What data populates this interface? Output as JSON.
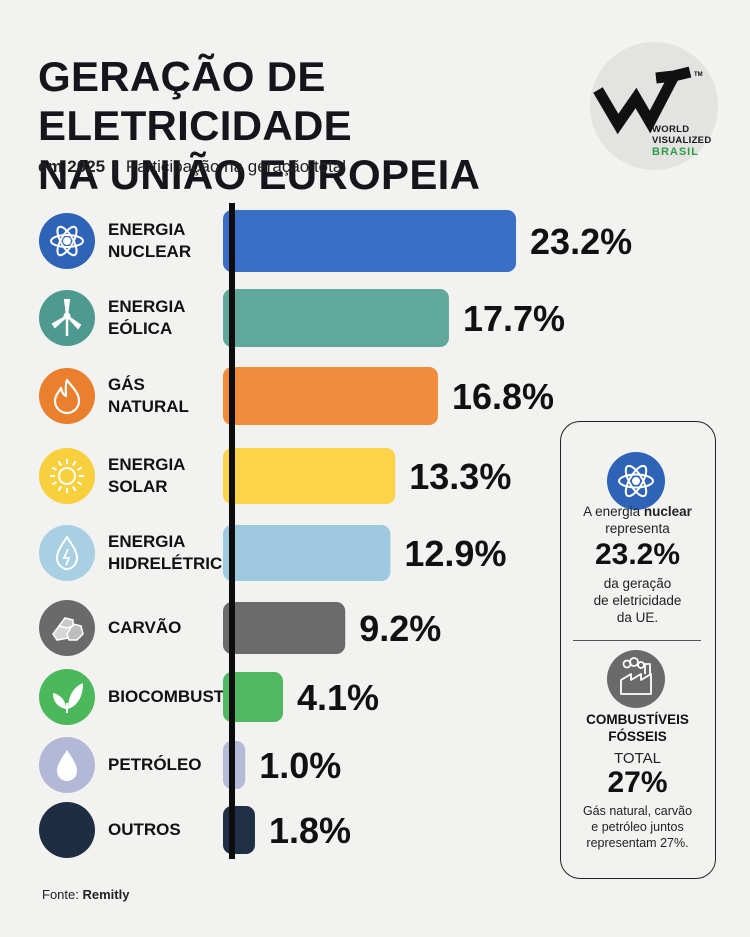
{
  "header": {
    "title_lines": [
      "GERAÇÃO DE ELETRICIDADE",
      "NA UNIÃO EUROPEIA"
    ],
    "year": "em 2025",
    "separator": "|",
    "subtitle": "Participação na geração total"
  },
  "logo": {
    "line1": "WORLD",
    "line2": "VISUALIZED",
    "line3": "BRASIL",
    "trademark": "TM"
  },
  "chart_data": {
    "type": "bar",
    "orientation": "horizontal",
    "unit": "%",
    "categories": [
      {
        "label_lines": [
          "ENERGIA",
          "NUCLEAR"
        ],
        "value": 23.2,
        "display": "23.2%",
        "color": "#3a6fc8",
        "icon": "atom-icon",
        "icon_bg": "#2f63b6"
      },
      {
        "label_lines": [
          "ENERGIA",
          "EÓLICA"
        ],
        "value": 17.7,
        "display": "17.7%",
        "color": "#5fa89b",
        "icon": "wind-turbine-icon",
        "icon_bg": "#4f9a8e"
      },
      {
        "label_lines": [
          "GÁS",
          "NATURAL"
        ],
        "value": 16.8,
        "display": "16.8%",
        "color": "#f08c3c",
        "icon": "flame-icon",
        "icon_bg": "#ea7f2e"
      },
      {
        "label_lines": [
          "ENERGIA",
          "SOLAR"
        ],
        "value": 13.3,
        "display": "13.3%",
        "color": "#fbd44a",
        "icon": "sun-icon",
        "icon_bg": "#f8cf3c"
      },
      {
        "label_lines": [
          "ENERGIA",
          "HIDRELÉTRICA"
        ],
        "value": 12.9,
        "display": "12.9%",
        "color": "#9fc9e0",
        "icon": "water-drop-icon",
        "icon_bg": "#a9cfe3"
      },
      {
        "label_lines": [
          "CARVÃO"
        ],
        "value": 9.2,
        "display": "9.2%",
        "color": "#6b6b6b",
        "icon": "coal-icon",
        "icon_bg": "#6a6a6a"
      },
      {
        "label_lines": [
          "BIOCOMBUSTÍVEIS"
        ],
        "value": 4.1,
        "display": "4.1%",
        "color": "#4fb860",
        "icon": "leaf-icon",
        "icon_bg": "#4cb85c"
      },
      {
        "label_lines": [
          "PETRÓLEO"
        ],
        "value": 1.0,
        "display": "1.0%",
        "color": "#b4bad8",
        "icon": "oil-drop-icon",
        "icon_bg": "#b3b8d6"
      },
      {
        "label_lines": [
          "OUTROS"
        ],
        "value": 1.8,
        "display": "1.8%",
        "color": "#1f2f45",
        "icon": "dot-icon",
        "icon_bg": "#1f2d42"
      }
    ],
    "xlim": [
      0,
      25
    ],
    "grid": false,
    "legend": "none"
  },
  "source": {
    "label": "Fonte:",
    "name": "Remitly"
  },
  "callout": {
    "nuclear": {
      "text_before": "A energia",
      "text_bold": "nuclear",
      "line2": "representa",
      "value": "23.2%",
      "line3": "da geração",
      "line4": "de eletricidade",
      "line5": "da UE.",
      "icon": "atom-icon",
      "icon_color": "#2f63b6"
    },
    "fossil": {
      "heading1": "COMBUSTÍVEIS",
      "heading2": "FÓSSEIS",
      "total_label": "TOTAL",
      "value": "27%",
      "note1": "Gás natural, carvão",
      "note2": "e petróleo juntos",
      "note3": "representam 27%.",
      "icon": "factory-icon",
      "icon_color": "#6a6a6a"
    }
  }
}
